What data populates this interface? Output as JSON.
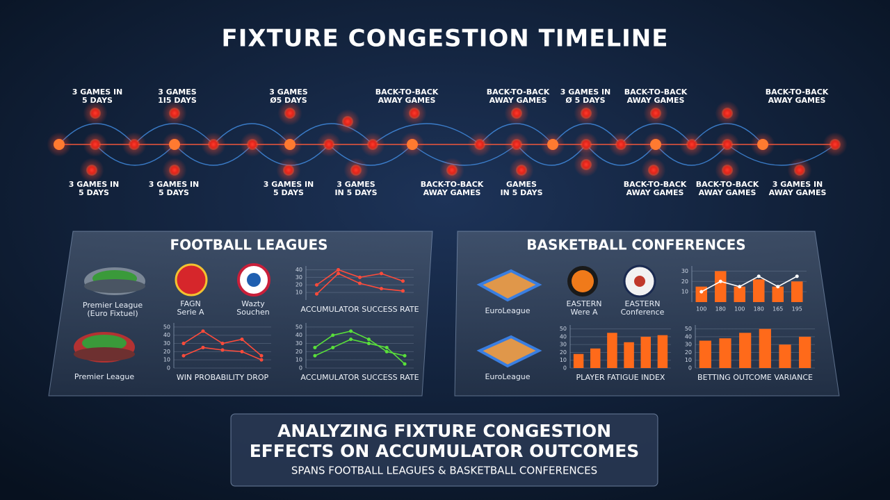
{
  "title": "FIXTURE CONGESTION TIMELINE",
  "timeline": {
    "top_labels": [
      [
        "3 GAMES IN",
        "5 DAYS"
      ],
      [
        "3 GAMES",
        "1I5 DAYS"
      ],
      [
        "3 GAMES",
        "Ø5 DAYS"
      ],
      [
        "BACK-TO-BACK",
        "AWAY GAMES"
      ],
      [
        "BACK-TO-BACK",
        "AWAY GAMES"
      ],
      [
        "3 GAMES IN",
        "Ø 5 DAYS"
      ],
      [
        "BACK-TO-BACK",
        "AWAY GAMES"
      ],
      [
        "BACK-TO-BACK",
        "AWAY GAMES"
      ]
    ],
    "bottom_labels": [
      [
        "3 GAMES IN",
        "5 DAYS"
      ],
      [
        "3 GAMES IN",
        "5 DAYS"
      ],
      [
        "3 GAMES IN",
        "5 DAYS"
      ],
      [
        "3 GAMES",
        "IN 5 DAYS"
      ],
      [
        "BACK-TO-BACK",
        "AWAY GAMES"
      ],
      [
        "GAMES",
        "IN 5 DAYS"
      ],
      [
        "BACK-TO-BACK",
        "AWAY GAMES"
      ],
      [
        "BACK-TO-BACK",
        "AWAY GAMES"
      ],
      [
        "3 GAMES IN",
        "AWAY GAMES"
      ]
    ]
  },
  "football": {
    "title": "FOOTBALL LEAGUES",
    "stadium_top": [
      "Premier League",
      "(Euro Fixtuel)"
    ],
    "stadium_bottom": "Premier League",
    "club_left": [
      "FAGN",
      "Serie A"
    ],
    "club_right": [
      "Wazty",
      "Souchen"
    ],
    "chart_top": {
      "title": "ACCUMULATOR SUCCESS RATE",
      "ylim": [
        0,
        45
      ],
      "yticks": [
        10,
        20,
        30,
        40
      ],
      "series": [
        {
          "color": "#ff4b3a",
          "values": [
            20,
            40,
            30,
            35,
            25
          ]
        },
        {
          "color": "#ff4b3a",
          "values": [
            8,
            35,
            22,
            15,
            12
          ]
        }
      ]
    },
    "chart_left": {
      "title": "WIN PROBABILITY DROP",
      "ylim": [
        0,
        55
      ],
      "yticks": [
        0,
        10,
        20,
        30,
        40,
        50
      ],
      "series": [
        {
          "color": "#ff4b3a",
          "values": [
            30,
            45,
            30,
            35,
            15
          ]
        },
        {
          "color": "#ff4b3a",
          "values": [
            15,
            25,
            22,
            20,
            10
          ]
        }
      ]
    },
    "chart_right": {
      "title": "ACCUMULATOR SUCCESS RATE",
      "ylim": [
        0,
        55
      ],
      "yticks": [
        0,
        10,
        20,
        30,
        40,
        50
      ],
      "series": [
        {
          "color": "#59e03a",
          "values": [
            25,
            40,
            45,
            35,
            20,
            15
          ]
        },
        {
          "color": "#59e03a",
          "values": [
            15,
            25,
            35,
            30,
            25,
            5
          ]
        }
      ]
    }
  },
  "basketball": {
    "title": "BASKETBALL CONFERENCES",
    "court_top": "EuroLeague",
    "court_bottom": "EuroLeague",
    "logo_left": [
      "EASTERN",
      "Were A"
    ],
    "logo_right": [
      "EASTERN",
      "Conference"
    ],
    "chart_top": {
      "ylim": [
        0,
        35
      ],
      "yticks": [
        10,
        20,
        30
      ],
      "categories": [
        "100",
        "180",
        "100",
        "180",
        "165",
        "195"
      ],
      "bars": {
        "color": "#ff6a1a",
        "values": [
          15,
          30,
          15,
          22,
          15,
          20
        ]
      },
      "line": {
        "color": "#ffffff",
        "values": [
          10,
          20,
          15,
          25,
          15,
          25
        ]
      }
    },
    "chart_left": {
      "title": "PLAYER FATIGUE INDEX",
      "ylim": [
        0,
        55
      ],
      "yticks": [
        0,
        10,
        20,
        30,
        40,
        50
      ],
      "bars": {
        "color": "#ff6a1a",
        "values": [
          18,
          25,
          45,
          33,
          40,
          42
        ]
      }
    },
    "chart_right": {
      "title": "BETTING OUTCOME VARIANCE",
      "ylim": [
        0,
        55
      ],
      "yticks": [
        0,
        10,
        20,
        30,
        40,
        50
      ],
      "bars": {
        "color": "#ff6a1a",
        "values": [
          35,
          38,
          45,
          50,
          30,
          40
        ]
      }
    }
  },
  "footer": {
    "heading": [
      "ANALYZING FIXTURE CONGESTION",
      "EFFECTS ON ACCUMULATOR OUTCOMES"
    ],
    "subtitle": "SPANS FOOTBALL LEAGUES & BASKETBALL CONFERENCES"
  }
}
